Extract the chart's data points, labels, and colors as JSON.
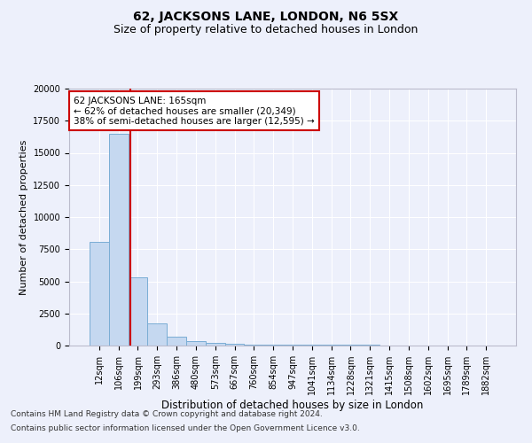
{
  "title1": "62, JACKSONS LANE, LONDON, N6 5SX",
  "title2": "Size of property relative to detached houses in London",
  "xlabel": "Distribution of detached houses by size in London",
  "ylabel": "Number of detached properties",
  "bar_values": [
    8100,
    16500,
    5300,
    1700,
    700,
    350,
    200,
    150,
    100,
    80,
    60,
    50,
    45,
    40,
    35,
    30,
    25,
    20,
    18,
    15,
    12
  ],
  "bar_labels": [
    "12sqm",
    "106sqm",
    "199sqm",
    "293sqm",
    "386sqm",
    "480sqm",
    "573sqm",
    "667sqm",
    "760sqm",
    "854sqm",
    "947sqm",
    "1041sqm",
    "1134sqm",
    "1228sqm",
    "1321sqm",
    "1415sqm",
    "1508sqm",
    "1602sqm",
    "1695sqm",
    "1789sqm",
    "1882sqm"
  ],
  "bar_color": "#c5d8f0",
  "bar_edgecolor": "#7aadd4",
  "bar_linewidth": 0.7,
  "vline_x": 1.59,
  "vline_color": "#cc0000",
  "ylim": [
    0,
    20000
  ],
  "annotation_text": "62 JACKSONS LANE: 165sqm\n← 62% of detached houses are smaller (20,349)\n38% of semi-detached houses are larger (12,595) →",
  "annotation_boxcolor": "white",
  "annotation_edgecolor": "#cc0000",
  "footer1": "Contains HM Land Registry data © Crown copyright and database right 2024.",
  "footer2": "Contains public sector information licensed under the Open Government Licence v3.0.",
  "bg_color": "#edf0fb",
  "grid_color": "#ffffff",
  "title1_fontsize": 10,
  "title2_fontsize": 9,
  "xlabel_fontsize": 8.5,
  "ylabel_fontsize": 8,
  "tick_fontsize": 7,
  "annotation_fontsize": 7.5,
  "footer_fontsize": 6.5
}
